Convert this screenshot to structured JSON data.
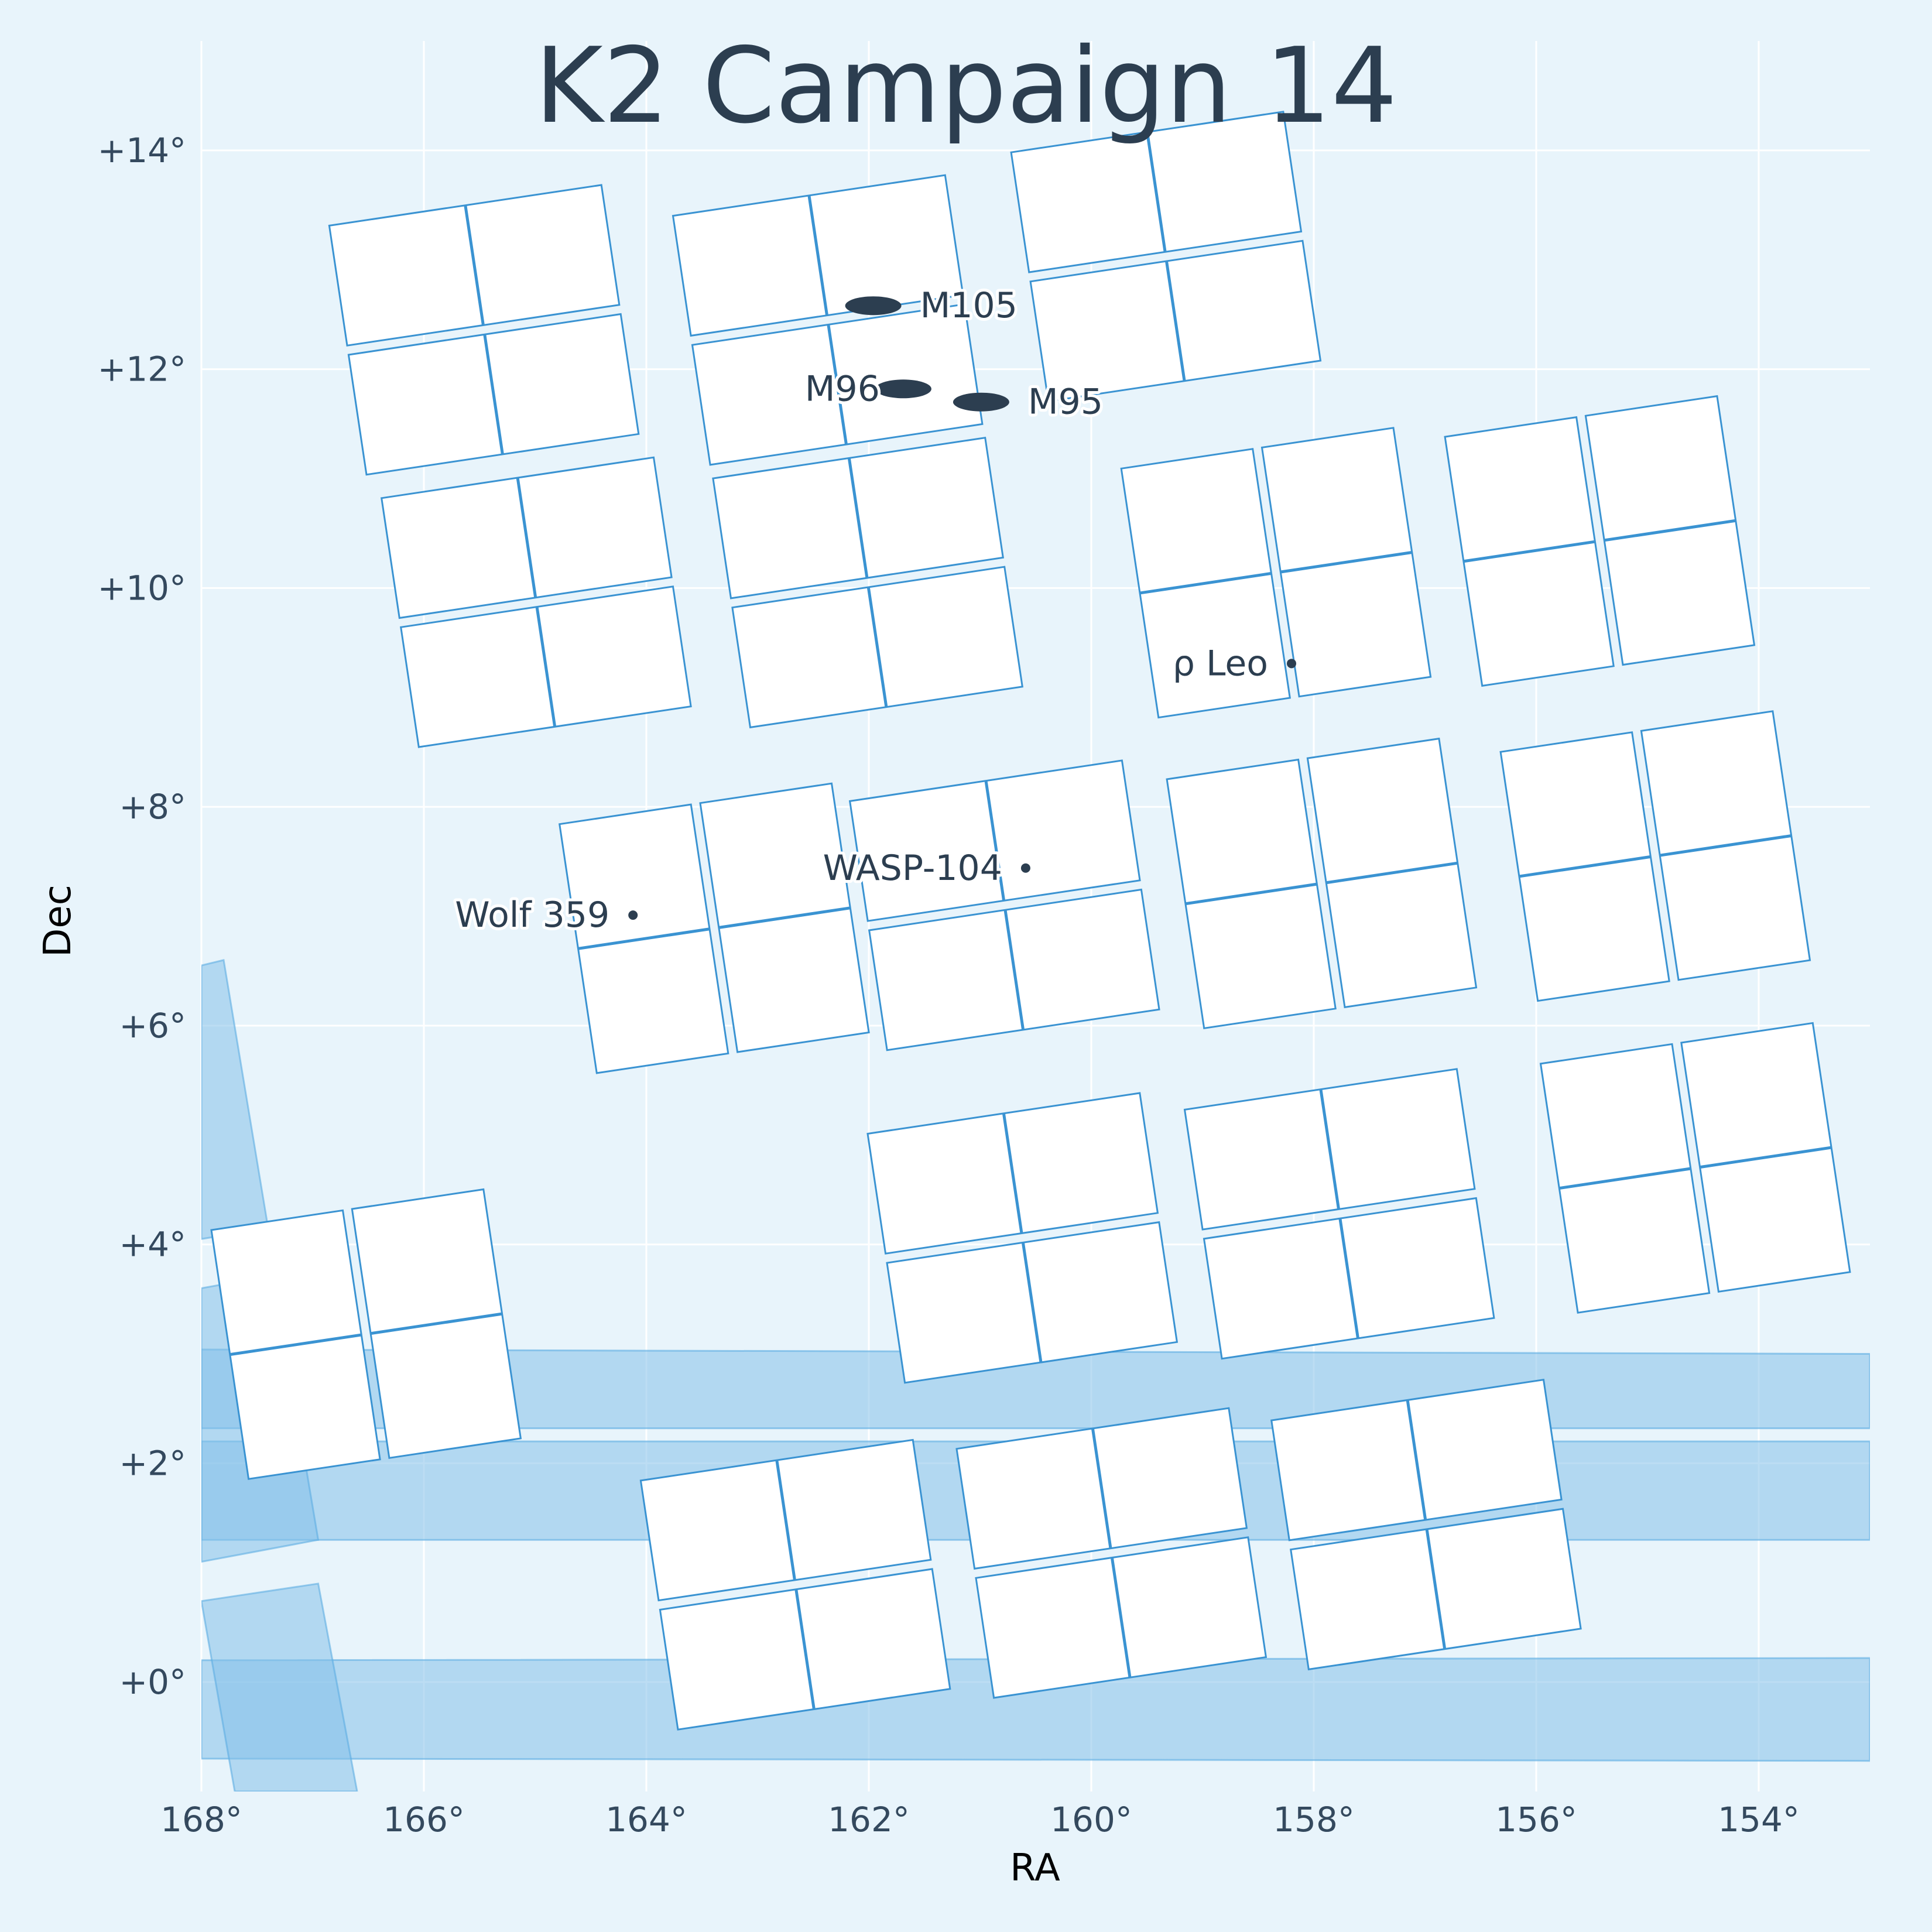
{
  "chart_data": {
    "type": "scatter",
    "title": "K2 Campaign 14",
    "xlabel": "RA",
    "ylabel": "Dec",
    "xlim": [
      168,
      153
    ],
    "ylim": [
      -1,
      15
    ],
    "x_ticks": [
      {
        "value": 168,
        "label": "168°"
      },
      {
        "value": 166,
        "label": "166°"
      },
      {
        "value": 164,
        "label": "164°"
      },
      {
        "value": 162,
        "label": "162°"
      },
      {
        "value": 160,
        "label": "160°"
      },
      {
        "value": 158,
        "label": "158°"
      },
      {
        "value": 156,
        "label": "156°"
      },
      {
        "value": 154,
        "label": "154°"
      }
    ],
    "y_ticks": [
      {
        "value": 0,
        "label": "+0°"
      },
      {
        "value": 2,
        "label": "+2°"
      },
      {
        "value": 4,
        "label": "+4°"
      },
      {
        "value": 6,
        "label": "+6°"
      },
      {
        "value": 8,
        "label": "+8°"
      },
      {
        "value": 10,
        "label": "+10°"
      },
      {
        "value": 12,
        "label": "+12°"
      },
      {
        "value": 14,
        "label": "+14°"
      }
    ],
    "grid": true,
    "colors": {
      "background": "#e8f4fb",
      "module_fill": "#ffffff",
      "module_edge": "#3a93d2",
      "neighbor_fill": "#85c1e9",
      "neighbor_edge": "#5dade2",
      "marker": "#2c3e50",
      "text": "#2c3e50"
    },
    "objects": [
      {
        "name": "M105",
        "ra": 161.96,
        "dec": 12.58,
        "marker": "galaxy"
      },
      {
        "name": "M96",
        "ra": 161.69,
        "dec": 11.82,
        "marker": "galaxy"
      },
      {
        "name": "M95",
        "ra": 160.99,
        "dec": 11.7,
        "marker": "galaxy"
      },
      {
        "name": "ρ Leo",
        "ra": 158.2,
        "dec": 9.31,
        "marker": "star"
      },
      {
        "name": "WASP-104",
        "ra": 160.59,
        "dec": 7.44,
        "marker": "star"
      },
      {
        "name": "Wolf 359",
        "ra": 164.12,
        "dec": 7.01,
        "marker": "star"
      }
    ],
    "ccd_modules": [
      {
        "center": [
          165.46,
          12.36
        ],
        "split": "v"
      },
      {
        "center": [
          162.37,
          12.45
        ],
        "split": "v"
      },
      {
        "center": [
          159.33,
          13.03
        ],
        "split": "v"
      },
      {
        "center": [
          164.99,
          9.87
        ],
        "split": "v"
      },
      {
        "center": [
          162.01,
          10.05
        ],
        "split": "v"
      },
      {
        "center": [
          158.34,
          10.14
        ],
        "split": "h"
      },
      {
        "center": [
          155.43,
          10.43
        ],
        "split": "h"
      },
      {
        "center": [
          163.39,
          6.89
        ],
        "split": "h"
      },
      {
        "center": [
          160.78,
          7.1
        ],
        "split": "v"
      },
      {
        "center": [
          157.93,
          7.3
        ],
        "split": "h"
      },
      {
        "center": [
          154.93,
          7.55
        ],
        "split": "h"
      },
      {
        "center": [
          166.52,
          3.18
        ],
        "split": "h"
      },
      {
        "center": [
          160.62,
          4.06
        ],
        "split": "v"
      },
      {
        "center": [
          157.77,
          4.28
        ],
        "split": "v"
      },
      {
        "center": [
          154.57,
          4.7
        ],
        "split": "h"
      },
      {
        "center": [
          162.66,
          0.89
        ],
        "split": "v"
      },
      {
        "center": [
          159.82,
          1.18
        ],
        "split": "v"
      },
      {
        "center": [
          156.99,
          1.44
        ],
        "split": "v"
      }
    ],
    "neighbor_strips": [
      {
        "corners": [
          [
            168,
            3.04
          ],
          [
            153,
            3.0
          ],
          [
            153,
            2.32
          ],
          [
            168,
            2.32
          ]
        ]
      },
      {
        "corners": [
          [
            168,
            2.2
          ],
          [
            153,
            2.2
          ],
          [
            153,
            1.3
          ],
          [
            168,
            1.3
          ]
        ]
      },
      {
        "corners": [
          [
            168,
            0.2
          ],
          [
            153,
            0.22
          ],
          [
            153,
            -0.72
          ],
          [
            168,
            -0.7
          ]
        ]
      },
      {
        "corners": [
          [
            168,
            6.55
          ],
          [
            167.8,
            6.6
          ],
          [
            167.4,
            4.15
          ],
          [
            168,
            4.05
          ]
        ]
      },
      {
        "corners": [
          [
            168,
            3.6
          ],
          [
            167.35,
            3.72
          ],
          [
            166.95,
            1.3
          ],
          [
            168,
            1.1
          ]
        ]
      },
      {
        "corners": [
          [
            168,
            0.74
          ],
          [
            166.95,
            0.9
          ],
          [
            166.6,
            -1.0
          ],
          [
            167.7,
            -1.0
          ]
        ]
      }
    ]
  }
}
